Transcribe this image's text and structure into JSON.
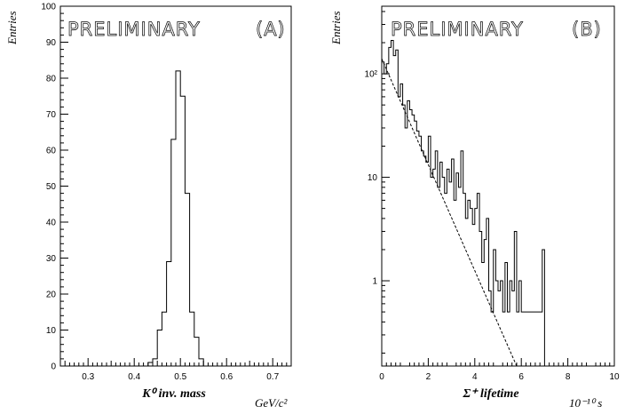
{
  "chart_data": [
    {
      "type": "histogram",
      "watermark": "PRELIMINARY",
      "panel_tag": "(A)",
      "ylabel": "Entries",
      "xlabel": "K⁰ inv. mass",
      "xunit": "GeV/c²",
      "xlim": [
        0.24,
        0.74
      ],
      "ylim": [
        0,
        100
      ],
      "yscale": "linear",
      "xticks": [
        0.3,
        0.4,
        0.5,
        0.6,
        0.7
      ],
      "xtick_labels": [
        "0.3",
        "0.4",
        "0.5",
        "0.6",
        "0.7"
      ],
      "yticks": [
        0,
        10,
        20,
        30,
        40,
        50,
        60,
        70,
        80,
        90,
        100
      ],
      "ytick_labels": [
        "0",
        "10",
        "20",
        "30",
        "40",
        "50",
        "60",
        "70",
        "80",
        "90",
        "100"
      ],
      "bin_edges": [
        0.43,
        0.44,
        0.45,
        0.46,
        0.47,
        0.48,
        0.49,
        0.5,
        0.51,
        0.52,
        0.53,
        0.54,
        0.55,
        0.56
      ],
      "counts": [
        1,
        2,
        10,
        15,
        29,
        63,
        82,
        75,
        48,
        15,
        8,
        2,
        0
      ]
    },
    {
      "type": "histogram",
      "watermark": "PRELIMINARY",
      "panel_tag": "(B)",
      "ylabel": "Entries",
      "xlabel": "Σ⁺ lifetime",
      "xunit": "10⁻¹⁰ s",
      "xlim": [
        0,
        10
      ],
      "ylim": [
        0.15,
        450
      ],
      "yscale": "log",
      "xticks": [
        0,
        2,
        4,
        6,
        8,
        10
      ],
      "xtick_labels": [
        "0",
        "2",
        "4",
        "6",
        "8",
        "10"
      ],
      "ytick_major": [
        1,
        10,
        100
      ],
      "ytick_labels": [
        "1",
        "10",
        "10²"
      ],
      "bin_width": 0.1,
      "counts": [
        130,
        100,
        125,
        180,
        210,
        150,
        170,
        60,
        80,
        50,
        30,
        55,
        45,
        40,
        35,
        28,
        25,
        18,
        16,
        14,
        25,
        10,
        12,
        18,
        8,
        14,
        10,
        7,
        12,
        9,
        15,
        6,
        11,
        8,
        18,
        7,
        4,
        6,
        5,
        3.5,
        5,
        7,
        3,
        1.5,
        2.5,
        4,
        0.8,
        0.5,
        2,
        1,
        0.8,
        1,
        0.5,
        1.5,
        0.5,
        1,
        0.8,
        3,
        0.5,
        1,
        0.5,
        0.5,
        0.5,
        0.5,
        0.5,
        0.5,
        0.5,
        0.5,
        0.5,
        2
      ],
      "fit": {
        "style": "dashed",
        "x": [
          0,
          5.8
        ],
        "y": [
          140,
          0.15
        ]
      }
    }
  ]
}
